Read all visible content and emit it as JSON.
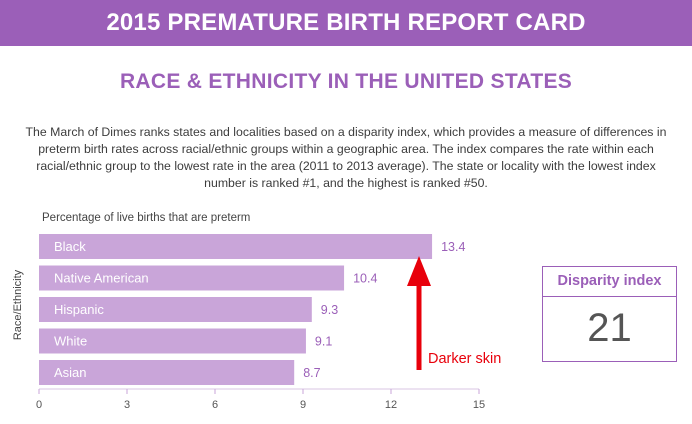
{
  "header": {
    "banner_title": "2015 PREMATURE BIRTH REPORT CARD",
    "section_title": "RACE & ETHNICITY IN THE UNITED STATES",
    "description": "The March of Dimes ranks states and localities based on a disparity index, which provides a measure of differences in preterm birth rates across racial/ethnic groups within a geographic area. The index compares the rate within each racial/ethnic group to the lowest rate in the area (2011 to 2013 average). The state or locality with the lowest index number is ranked #1, and the highest is ranked #50."
  },
  "disparity_box": {
    "title": "Disparity index",
    "value": "21"
  },
  "annotation": {
    "text": "Darker skin"
  },
  "colors": {
    "brand_purple": "#9b5fb8",
    "bar_fill": "#c9a5d9",
    "arrow_red": "#e8000b"
  },
  "chart_data": {
    "type": "bar",
    "orientation": "horizontal",
    "title": "Percentage of live births that are preterm",
    "xlabel": "",
    "ylabel": "Race/Ethnicity",
    "categories": [
      "Black",
      "Native American",
      "Hispanic",
      "White",
      "Asian"
    ],
    "values": [
      13.4,
      10.4,
      9.3,
      9.1,
      8.7
    ],
    "data_labels": [
      "13.4",
      "10.4",
      "9.3",
      "9.1",
      "8.7"
    ],
    "xlim": [
      0,
      15
    ],
    "xticks": [
      0,
      3,
      6,
      9,
      12,
      15
    ],
    "grid": false
  }
}
